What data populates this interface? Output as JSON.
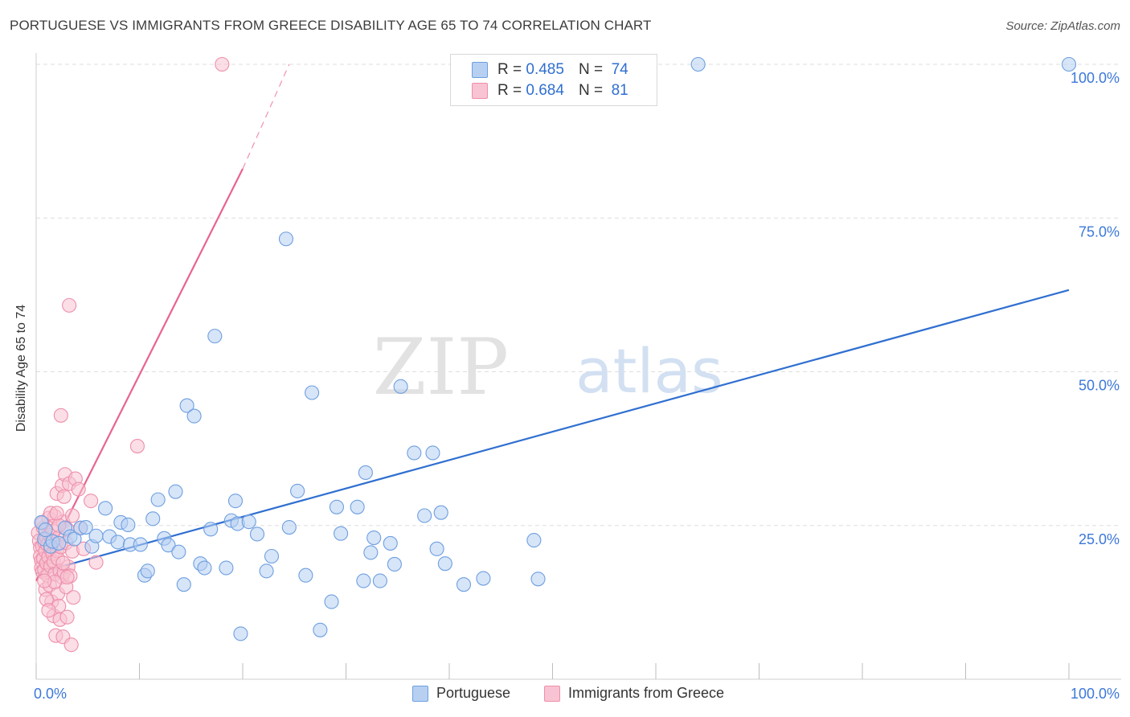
{
  "title": "PORTUGUESE VS IMMIGRANTS FROM GREECE DISABILITY AGE 65 TO 74 CORRELATION CHART",
  "source": "Source: ZipAtlas.com",
  "watermark": {
    "part1": "ZIP",
    "part2": "atlas"
  },
  "legend": {
    "r_label": "R =",
    "n_label": "N =",
    "rows": [
      {
        "r": "0.485",
        "n": "74",
        "fill": "#b7d0f2",
        "stroke": "#6e9fe0"
      },
      {
        "r": "0.684",
        "n": "81",
        "fill": "#f8c3d2",
        "stroke": "#ee8fab"
      }
    ]
  },
  "bottom_legend": [
    {
      "label": "Portuguese",
      "fill": "#b7d0f2",
      "stroke": "#6e9fe0"
    },
    {
      "label": "Immigrants from Greece",
      "fill": "#f8c3d2",
      "stroke": "#ee8fab"
    }
  ],
  "chart_data": {
    "type": "scatter",
    "title": "PORTUGUESE VS IMMIGRANTS FROM GREECE DISABILITY AGE 65 TO 74 CORRELATION CHART",
    "xlabel": "",
    "ylabel": "Disability Age 65 to 74",
    "xlim": [
      0,
      100
    ],
    "ylim": [
      0,
      100
    ],
    "x_tick_labels": [
      "0.0%",
      "100.0%"
    ],
    "y_tick_labels": [
      "25.0%",
      "50.0%",
      "75.0%",
      "100.0%"
    ],
    "y_ticks": [
      25,
      50,
      75,
      100
    ],
    "grid": "horizontal dashed",
    "legend_position": "top-center",
    "series": [
      {
        "name": "Portuguese",
        "color": "#2f6fd0",
        "point_fill": "#b7d0f2",
        "point_stroke": "#6e9fe0",
        "R": 0.485,
        "N": 74,
        "trend": {
          "x": [
            0,
            100
          ],
          "y": [
            17.2,
            63.3
          ]
        },
        "points": [
          [
            0.5,
            25.5
          ],
          [
            0.8,
            22.8
          ],
          [
            1.4,
            21.6
          ],
          [
            1.6,
            22.4
          ],
          [
            2.2,
            22.1
          ],
          [
            2.8,
            24.6
          ],
          [
            3.3,
            23.2
          ],
          [
            3.7,
            22.8
          ],
          [
            4.3,
            24.6
          ],
          [
            4.8,
            24.7
          ],
          [
            5.4,
            21.6
          ],
          [
            5.8,
            23.3
          ],
          [
            6.7,
            27.8
          ],
          [
            7.1,
            23.2
          ],
          [
            7.9,
            22.3
          ],
          [
            8.2,
            25.5
          ],
          [
            8.9,
            25.1
          ],
          [
            9.1,
            21.9
          ],
          [
            10.1,
            21.9
          ],
          [
            10.5,
            16.9
          ],
          [
            10.8,
            17.6
          ],
          [
            11.3,
            26.1
          ],
          [
            11.8,
            29.2
          ],
          [
            12.4,
            22.9
          ],
          [
            12.8,
            21.8
          ],
          [
            13.5,
            30.5
          ],
          [
            13.8,
            20.7
          ],
          [
            14.3,
            15.4
          ],
          [
            14.6,
            44.5
          ],
          [
            15.3,
            42.8
          ],
          [
            15.9,
            18.8
          ],
          [
            16.3,
            18.1
          ],
          [
            16.9,
            24.4
          ],
          [
            17.3,
            55.8
          ],
          [
            18.4,
            18.1
          ],
          [
            18.9,
            25.8
          ],
          [
            19.3,
            29.0
          ],
          [
            19.5,
            25.3
          ],
          [
            19.8,
            7.4
          ],
          [
            20.6,
            25.6
          ],
          [
            21.4,
            23.6
          ],
          [
            22.3,
            17.6
          ],
          [
            22.8,
            20.0
          ],
          [
            24.2,
            71.6
          ],
          [
            24.5,
            24.7
          ],
          [
            25.3,
            30.6
          ],
          [
            26.1,
            16.9
          ],
          [
            26.7,
            46.6
          ],
          [
            27.5,
            8.0
          ],
          [
            28.6,
            12.6
          ],
          [
            29.1,
            28.0
          ],
          [
            29.5,
            23.7
          ],
          [
            31.1,
            28.0
          ],
          [
            31.7,
            16.0
          ],
          [
            31.9,
            33.6
          ],
          [
            32.4,
            20.6
          ],
          [
            32.7,
            23.0
          ],
          [
            33.3,
            16.0
          ],
          [
            34.3,
            22.1
          ],
          [
            34.7,
            18.7
          ],
          [
            35.3,
            47.6
          ],
          [
            36.6,
            36.8
          ],
          [
            37.6,
            26.6
          ],
          [
            38.4,
            36.8
          ],
          [
            38.8,
            21.2
          ],
          [
            39.2,
            27.1
          ],
          [
            39.6,
            18.8
          ],
          [
            41.4,
            15.4
          ],
          [
            43.3,
            16.4
          ],
          [
            48.2,
            22.6
          ],
          [
            48.6,
            16.3
          ],
          [
            64.1,
            100.0
          ],
          [
            100.0,
            100.0
          ],
          [
            0.9,
            24.3
          ]
        ]
      },
      {
        "name": "Immigrants from Greece",
        "color": "#e8648f",
        "point_fill": "#f8c3d2",
        "point_stroke": "#ee8fab",
        "R": 0.684,
        "N": 81,
        "trend": {
          "x": [
            0,
            20
          ],
          "y": [
            16.0,
            83.0
          ],
          "dashed_to": {
            "x": 24.5,
            "y": 100
          }
        },
        "points": [
          [
            0.2,
            23.8
          ],
          [
            0.3,
            22.5
          ],
          [
            0.4,
            21.4
          ],
          [
            0.4,
            20.0
          ],
          [
            0.5,
            19.3
          ],
          [
            0.5,
            18.1
          ],
          [
            0.6,
            17.5
          ],
          [
            0.6,
            21.6
          ],
          [
            0.7,
            24.6
          ],
          [
            0.7,
            19.6
          ],
          [
            0.8,
            22.3
          ],
          [
            0.8,
            17.8
          ],
          [
            0.9,
            14.6
          ],
          [
            0.9,
            20.8
          ],
          [
            1.0,
            23.0
          ],
          [
            1.0,
            18.9
          ],
          [
            1.1,
            21.9
          ],
          [
            1.1,
            16.9
          ],
          [
            1.2,
            26.2
          ],
          [
            1.2,
            19.9
          ],
          [
            1.3,
            23.4
          ],
          [
            1.3,
            15.3
          ],
          [
            1.4,
            21.1
          ],
          [
            1.4,
            18.4
          ],
          [
            1.5,
            22.6
          ],
          [
            1.5,
            12.6
          ],
          [
            1.6,
            20.4
          ],
          [
            1.6,
            24.1
          ],
          [
            1.7,
            19.1
          ],
          [
            1.7,
            10.3
          ],
          [
            1.8,
            26.5
          ],
          [
            1.8,
            17.1
          ],
          [
            1.9,
            22.0
          ],
          [
            1.9,
            7.1
          ],
          [
            2.0,
            20.9
          ],
          [
            2.0,
            30.2
          ],
          [
            2.1,
            13.9
          ],
          [
            2.1,
            19.6
          ],
          [
            2.2,
            23.1
          ],
          [
            2.2,
            11.9
          ],
          [
            2.3,
            17.6
          ],
          [
            2.3,
            9.7
          ],
          [
            2.4,
            42.9
          ],
          [
            2.4,
            21.5
          ],
          [
            2.5,
            16.6
          ],
          [
            2.5,
            31.5
          ],
          [
            2.6,
            25.6
          ],
          [
            2.6,
            6.9
          ],
          [
            2.7,
            29.7
          ],
          [
            2.7,
            17.4
          ],
          [
            2.8,
            33.3
          ],
          [
            2.9,
            22.2
          ],
          [
            2.9,
            15.0
          ],
          [
            3.0,
            24.4
          ],
          [
            3.0,
            10.1
          ],
          [
            3.1,
            18.3
          ],
          [
            3.2,
            60.8
          ],
          [
            3.2,
            31.8
          ],
          [
            3.3,
            16.8
          ],
          [
            3.4,
            5.6
          ],
          [
            3.5,
            26.6
          ],
          [
            3.5,
            20.8
          ],
          [
            3.6,
            13.3
          ],
          [
            3.8,
            32.6
          ],
          [
            4.1,
            30.9
          ],
          [
            4.3,
            24.6
          ],
          [
            4.6,
            21.2
          ],
          [
            5.3,
            29.0
          ],
          [
            5.8,
            19.0
          ],
          [
            9.8,
            37.9
          ],
          [
            18.0,
            100.0
          ],
          [
            0.6,
            25.4
          ],
          [
            1.0,
            13.0
          ],
          [
            1.4,
            27.0
          ],
          [
            1.8,
            15.8
          ],
          [
            2.2,
            25.0
          ],
          [
            2.6,
            18.9
          ],
          [
            3.0,
            16.6
          ],
          [
            1.2,
            11.2
          ],
          [
            0.8,
            16.0
          ],
          [
            2.0,
            27.0
          ]
        ]
      }
    ]
  }
}
